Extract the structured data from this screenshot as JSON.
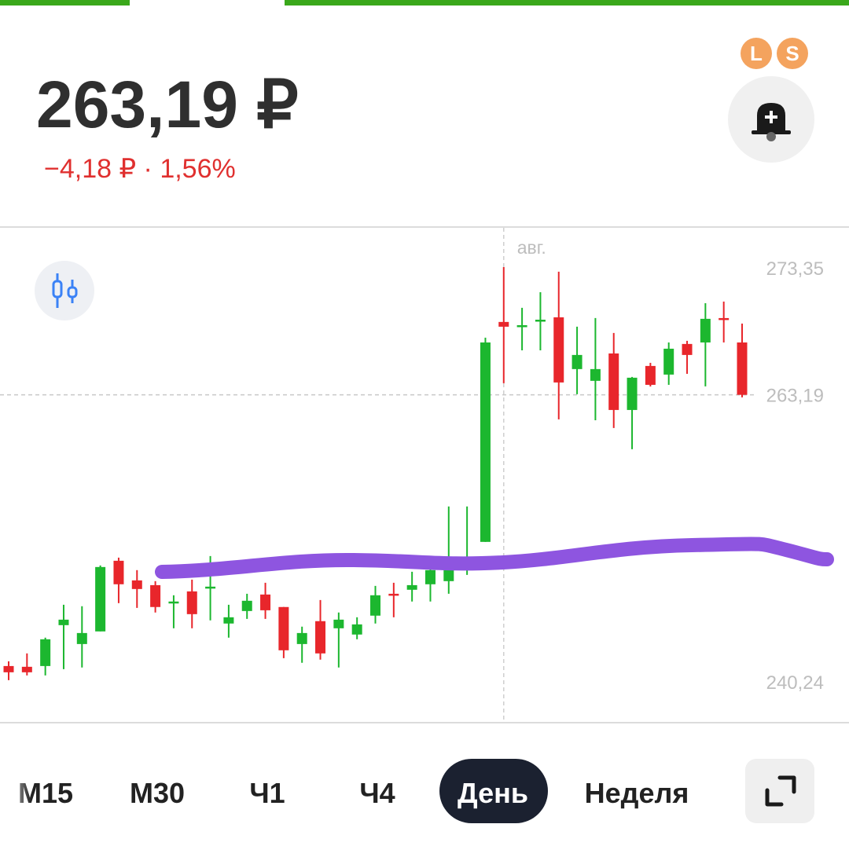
{
  "header": {
    "price": "263,19 ₽",
    "change": "−4,18 ₽ · 1,56%",
    "badges": [
      "L",
      "S"
    ]
  },
  "chart_data": {
    "type": "candlestick",
    "categories": [
      null,
      null,
      null,
      null,
      null,
      null,
      null,
      null,
      null,
      null,
      null,
      null,
      null,
      null,
      null,
      null,
      null,
      null,
      null,
      null,
      null,
      null,
      null,
      null,
      null,
      null,
      null,
      "авг.",
      null,
      null,
      null,
      null,
      null,
      null,
      null,
      null,
      null,
      null,
      null,
      null,
      null
    ],
    "open": [
      241.5,
      241.44,
      241.5,
      244.77,
      243.26,
      244.27,
      249.92,
      248.35,
      247.97,
      246.53,
      247.47,
      247.72,
      244.9,
      245.9,
      247.22,
      246.22,
      243.26,
      245.09,
      244.52,
      244.02,
      245.53,
      247.28,
      247.6,
      248.04,
      248.29,
      249.8,
      251.43,
      269.02,
      268.64,
      269.08,
      269.39,
      265.25,
      264.31,
      266.5,
      261.98,
      265.5,
      264.81,
      267.26,
      267.38,
      269.33,
      267.38
    ],
    "high": [
      241.88,
      242.51,
      243.77,
      246.4,
      246.28,
      249.54,
      250.17,
      249.17,
      248.29,
      247.16,
      248.41,
      250.3,
      246.4,
      247.28,
      248.16,
      246.22,
      244.65,
      246.78,
      245.78,
      245.4,
      247.91,
      248.16,
      249.04,
      250.05,
      254.26,
      254.26,
      267.76,
      273.41,
      270.15,
      271.4,
      273.04,
      268.64,
      269.33,
      268.14,
      264.62,
      265.75,
      267.38,
      267.51,
      270.52,
      270.65,
      268.89
    ],
    "low": [
      240.37,
      240.75,
      240.75,
      241.25,
      241.38,
      244.27,
      246.53,
      246.15,
      245.78,
      244.52,
      244.52,
      245.15,
      243.77,
      245.27,
      245.27,
      242.13,
      241.76,
      242.01,
      241.38,
      243.64,
      244.9,
      245.4,
      246.66,
      246.66,
      247.28,
      248.79,
      251.43,
      264.12,
      266.75,
      266.75,
      261.23,
      263.24,
      261.16,
      260.54,
      258.84,
      263.86,
      263.99,
      264.87,
      263.87,
      267.38,
      262.99
    ],
    "close": [
      241.0,
      241.0,
      243.64,
      245.21,
      244.14,
      249.42,
      248.04,
      247.66,
      246.22,
      246.66,
      245.65,
      247.85,
      245.4,
      246.72,
      245.96,
      242.76,
      244.14,
      242.51,
      245.21,
      244.83,
      247.16,
      247.16,
      247.97,
      249.17,
      249.17,
      250.05,
      267.38,
      268.64,
      268.76,
      269.2,
      264.18,
      266.38,
      265.25,
      261.98,
      264.56,
      263.99,
      266.88,
      266.38,
      269.27,
      269.2,
      263.19
    ],
    "up_color": "#1cb72f",
    "down_color": "#e8262b",
    "ylim": [
      236.97,
      276.55
    ],
    "yticks": [
      {
        "value": 273.35,
        "label": "273,35"
      },
      {
        "value": 240.24,
        "label": "240,24"
      }
    ],
    "current_price": {
      "value": 263.19,
      "label": "263,19"
    }
  },
  "tabs": [
    "M15",
    "M30",
    "Ч1",
    "Ч4",
    "День",
    "Неделя"
  ],
  "selected_tab": 4
}
